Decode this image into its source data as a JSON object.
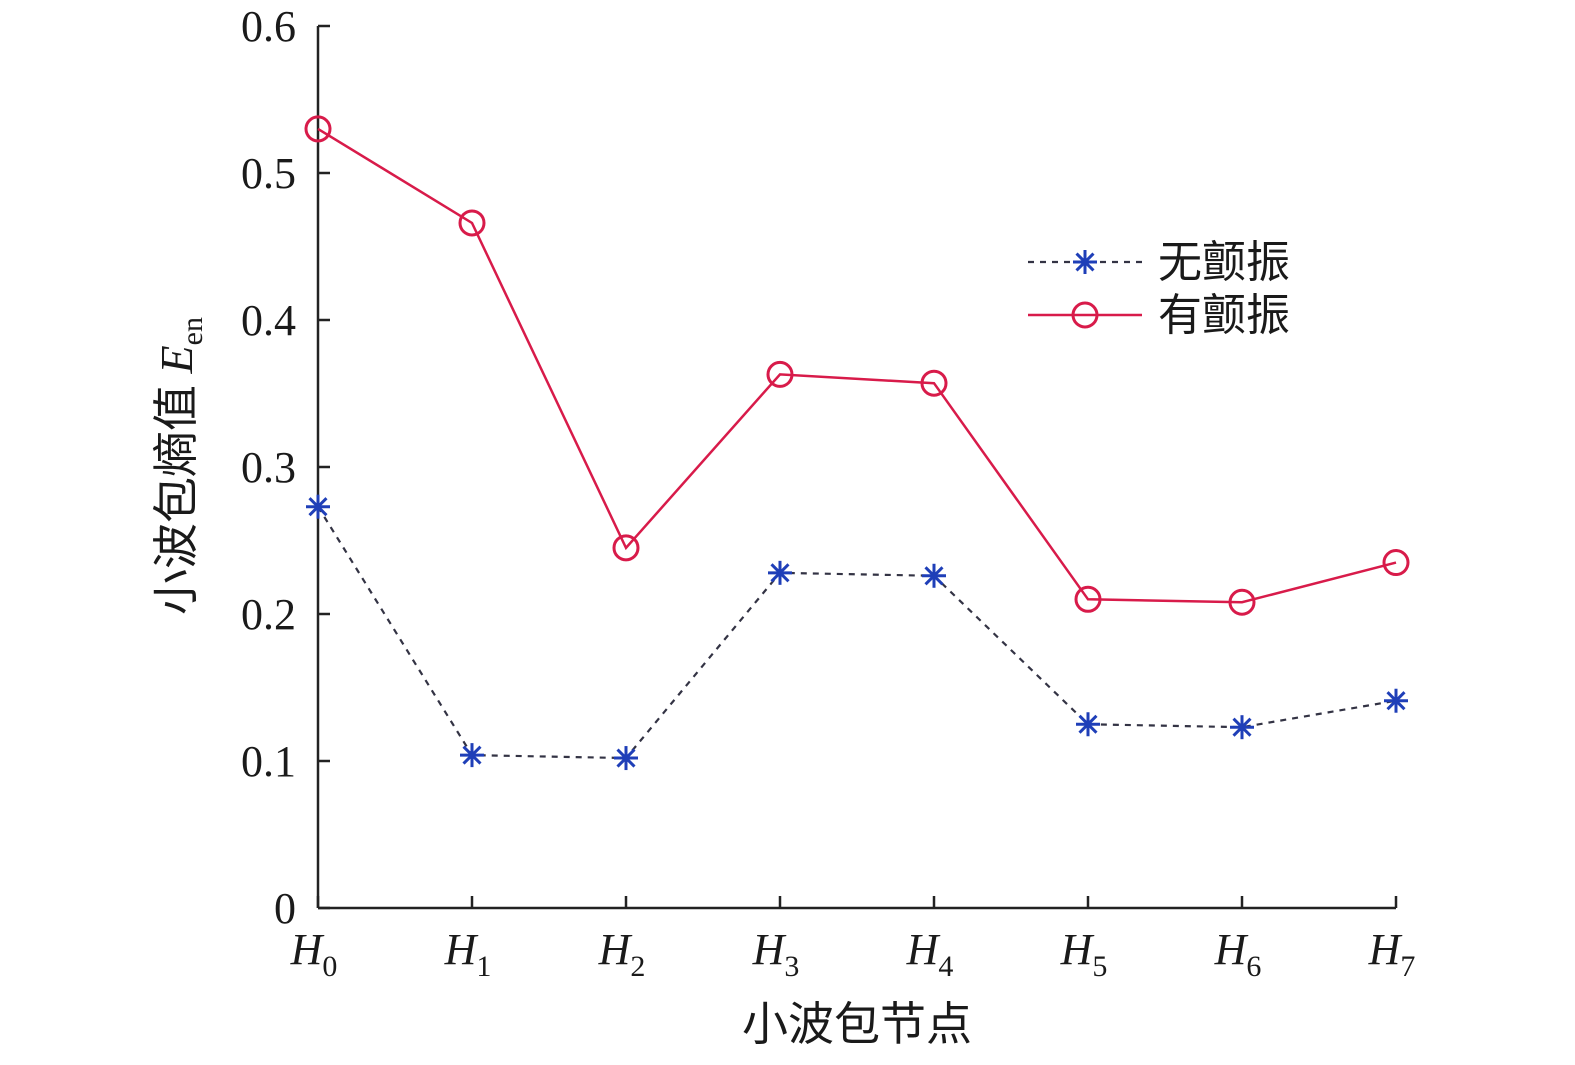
{
  "chart_data": {
    "type": "line",
    "categories": [
      {
        "main": "H",
        "sub": "0"
      },
      {
        "main": "H",
        "sub": "1"
      },
      {
        "main": "H",
        "sub": "2"
      },
      {
        "main": "H",
        "sub": "3"
      },
      {
        "main": "H",
        "sub": "4"
      },
      {
        "main": "H",
        "sub": "5"
      },
      {
        "main": "H",
        "sub": "6"
      },
      {
        "main": "H",
        "sub": "7"
      }
    ],
    "series": [
      {
        "name": "无颤振",
        "values": [
          0.273,
          0.104,
          0.102,
          0.228,
          0.226,
          0.125,
          0.123,
          0.141
        ],
        "color": "#1f3fb8",
        "line_color": "#333344",
        "line_style": "dashed",
        "marker": "asterisk"
      },
      {
        "name": "有颤振",
        "values": [
          0.53,
          0.466,
          0.245,
          0.363,
          0.357,
          0.21,
          0.208,
          0.235
        ],
        "color": "#d81b4a",
        "line_color": "#d81b4a",
        "line_style": "solid",
        "marker": "circle"
      }
    ],
    "ylim": [
      0,
      0.6
    ],
    "yticks": [
      "0",
      "0.1",
      "0.2",
      "0.3",
      "0.4",
      "0.5",
      "0.6"
    ],
    "xlabel": "小波包节点",
    "ylabel": {
      "main": "小波包熵值 ",
      "var": "E",
      "sub": "en"
    },
    "grid": false,
    "legend_position": "top-right"
  }
}
